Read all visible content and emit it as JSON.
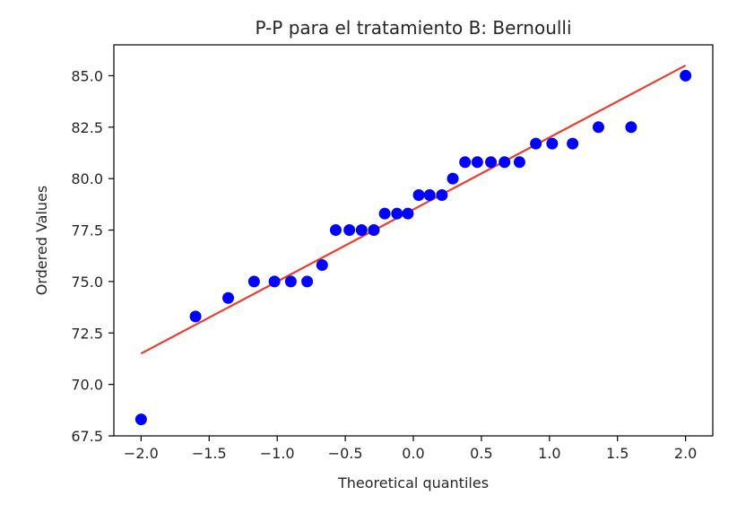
{
  "chart_data": {
    "type": "scatter",
    "title": "P-P para el tratamiento B: Bernoulli",
    "xlabel": "Theoretical quantiles",
    "ylabel": "Ordered Values",
    "xlim": [
      -2.2,
      2.2
    ],
    "ylim": [
      67.5,
      86.5
    ],
    "x_ticks": [
      -2.0,
      -1.5,
      -1.0,
      -0.5,
      0.0,
      0.5,
      1.0,
      1.5,
      2.0
    ],
    "x_tick_labels": [
      "−2.0",
      "−1.5",
      "−1.0",
      "−0.5",
      "0.0",
      "0.5",
      "1.0",
      "1.5",
      "2.0"
    ],
    "y_ticks": [
      67.5,
      70.0,
      72.5,
      75.0,
      77.5,
      80.0,
      82.5,
      85.0
    ],
    "y_tick_labels": [
      "67.5",
      "70.0",
      "72.5",
      "75.0",
      "77.5",
      "80.0",
      "82.5",
      "85.0"
    ],
    "grid": false,
    "series": [
      {
        "type": "scatter",
        "color": "#0000ff",
        "points": [
          {
            "x": -2.0,
            "y": 68.3
          },
          {
            "x": -1.6,
            "y": 73.3
          },
          {
            "x": -1.36,
            "y": 74.2
          },
          {
            "x": -1.17,
            "y": 75.0
          },
          {
            "x": -1.02,
            "y": 75.0
          },
          {
            "x": -0.9,
            "y": 75.0
          },
          {
            "x": -0.78,
            "y": 75.0
          },
          {
            "x": -0.67,
            "y": 75.8
          },
          {
            "x": -0.57,
            "y": 77.5
          },
          {
            "x": -0.47,
            "y": 77.5
          },
          {
            "x": -0.38,
            "y": 77.5
          },
          {
            "x": -0.29,
            "y": 77.5
          },
          {
            "x": -0.21,
            "y": 78.3
          },
          {
            "x": -0.12,
            "y": 78.3
          },
          {
            "x": -0.04,
            "y": 78.3
          },
          {
            "x": 0.04,
            "y": 79.2
          },
          {
            "x": 0.12,
            "y": 79.2
          },
          {
            "x": 0.21,
            "y": 79.2
          },
          {
            "x": 0.29,
            "y": 80.0
          },
          {
            "x": 0.38,
            "y": 80.8
          },
          {
            "x": 0.47,
            "y": 80.8
          },
          {
            "x": 0.57,
            "y": 80.8
          },
          {
            "x": 0.67,
            "y": 80.8
          },
          {
            "x": 0.78,
            "y": 80.8
          },
          {
            "x": 0.9,
            "y": 81.7
          },
          {
            "x": 1.02,
            "y": 81.7
          },
          {
            "x": 1.17,
            "y": 81.7
          },
          {
            "x": 1.36,
            "y": 82.5
          },
          {
            "x": 1.6,
            "y": 82.5
          },
          {
            "x": 2.0,
            "y": 85.0
          }
        ]
      },
      {
        "type": "line",
        "color": "#ee3b2f",
        "points": [
          {
            "x": -2.0,
            "y": 71.5
          },
          {
            "x": 2.0,
            "y": 85.5
          }
        ]
      }
    ]
  }
}
